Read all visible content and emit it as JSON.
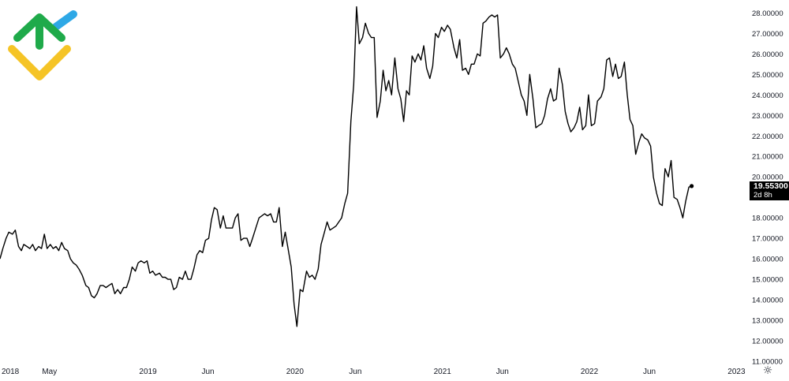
{
  "colors": {
    "line": "#000000",
    "logo_green": "#1faa4a",
    "logo_blue": "#2ea8e6",
    "logo_yellow": "#f5c426",
    "badge_bg": "#000000",
    "badge_text": "#ffffff"
  },
  "icons": {
    "logo": "brand-logo-icon",
    "settings": "gear-icon"
  },
  "price_badge": {
    "value": "19.55300",
    "countdown": "2d 8h"
  },
  "chart_data": {
    "type": "line",
    "title": "",
    "xlabel": "",
    "ylabel": "",
    "ylim": [
      11,
      28.4
    ],
    "xlim": [
      "2018-01-01",
      "2023-01-20"
    ],
    "y_ticks": [
      "11.00000",
      "12.00000",
      "13.00000",
      "14.00000",
      "15.00000",
      "16.00000",
      "17.00000",
      "18.00000",
      "19.00000",
      "20.00000",
      "21.00000",
      "22.00000",
      "23.00000",
      "24.00000",
      "25.00000",
      "26.00000",
      "27.00000",
      "28.00000"
    ],
    "x_ticks": [
      {
        "label": "2018",
        "date": "2018-01-01"
      },
      {
        "label": "May",
        "date": "2018-05-01"
      },
      {
        "label": "2019",
        "date": "2019-01-01"
      },
      {
        "label": "Jun",
        "date": "2019-06-01"
      },
      {
        "label": "2020",
        "date": "2020-01-01"
      },
      {
        "label": "Jun",
        "date": "2020-06-01"
      },
      {
        "label": "2021",
        "date": "2021-01-01"
      },
      {
        "label": "Jun",
        "date": "2021-06-01"
      },
      {
        "label": "2022",
        "date": "2022-01-01"
      },
      {
        "label": "Jun",
        "date": "2022-06-01"
      },
      {
        "label": "2023",
        "date": "2023-01-01"
      }
    ],
    "grid": false,
    "series": [
      {
        "points": [
          [
            "2018-01-01",
            16.0
          ],
          [
            "2018-01-08",
            16.5
          ],
          [
            "2018-01-16",
            17.0
          ],
          [
            "2018-01-23",
            17.3
          ],
          [
            "2018-02-01",
            17.2
          ],
          [
            "2018-02-08",
            17.4
          ],
          [
            "2018-02-16",
            16.6
          ],
          [
            "2018-02-23",
            16.4
          ],
          [
            "2018-03-01",
            16.7
          ],
          [
            "2018-03-09",
            16.6
          ],
          [
            "2018-03-16",
            16.5
          ],
          [
            "2018-03-23",
            16.7
          ],
          [
            "2018-03-30",
            16.4
          ],
          [
            "2018-04-07",
            16.6
          ],
          [
            "2018-04-14",
            16.5
          ],
          [
            "2018-04-21",
            17.2
          ],
          [
            "2018-04-28",
            16.5
          ],
          [
            "2018-05-06",
            16.7
          ],
          [
            "2018-05-13",
            16.5
          ],
          [
            "2018-05-20",
            16.6
          ],
          [
            "2018-05-27",
            16.4
          ],
          [
            "2018-06-03",
            16.8
          ],
          [
            "2018-06-10",
            16.5
          ],
          [
            "2018-06-18",
            16.4
          ],
          [
            "2018-06-25",
            16.0
          ],
          [
            "2018-07-02",
            15.8
          ],
          [
            "2018-07-09",
            15.7
          ],
          [
            "2018-07-16",
            15.5
          ],
          [
            "2018-07-24",
            15.2
          ],
          [
            "2018-08-02",
            14.7
          ],
          [
            "2018-08-09",
            14.6
          ],
          [
            "2018-08-16",
            14.2
          ],
          [
            "2018-08-23",
            14.1
          ],
          [
            "2018-08-30",
            14.3
          ],
          [
            "2018-09-07",
            14.7
          ],
          [
            "2018-09-14",
            14.7
          ],
          [
            "2018-09-21",
            14.6
          ],
          [
            "2018-09-28",
            14.7
          ],
          [
            "2018-10-06",
            14.8
          ],
          [
            "2018-10-13",
            14.3
          ],
          [
            "2018-10-20",
            14.5
          ],
          [
            "2018-10-27",
            14.3
          ],
          [
            "2018-11-04",
            14.6
          ],
          [
            "2018-11-11",
            14.6
          ],
          [
            "2018-11-18",
            15.0
          ],
          [
            "2018-11-25",
            15.6
          ],
          [
            "2018-12-03",
            15.4
          ],
          [
            "2018-12-10",
            15.8
          ],
          [
            "2018-12-17",
            15.9
          ],
          [
            "2018-12-25",
            15.8
          ],
          [
            "2019-01-01",
            15.9
          ],
          [
            "2019-01-08",
            15.3
          ],
          [
            "2019-01-15",
            15.4
          ],
          [
            "2019-01-22",
            15.2
          ],
          [
            "2019-02-01",
            15.3
          ],
          [
            "2019-02-08",
            15.1
          ],
          [
            "2019-02-15",
            15.1
          ],
          [
            "2019-02-22",
            15.0
          ],
          [
            "2019-03-01",
            15.0
          ],
          [
            "2019-03-08",
            14.5
          ],
          [
            "2019-03-15",
            14.6
          ],
          [
            "2019-03-22",
            15.1
          ],
          [
            "2019-03-30",
            15.0
          ],
          [
            "2019-04-06",
            15.4
          ],
          [
            "2019-04-13",
            15.0
          ],
          [
            "2019-04-20",
            15.0
          ],
          [
            "2019-04-27",
            15.5
          ],
          [
            "2019-05-05",
            16.2
          ],
          [
            "2019-05-12",
            16.4
          ],
          [
            "2019-05-19",
            16.3
          ],
          [
            "2019-05-26",
            16.9
          ],
          [
            "2019-06-03",
            17.0
          ],
          [
            "2019-06-10",
            17.9
          ],
          [
            "2019-06-17",
            18.5
          ],
          [
            "2019-06-24",
            18.4
          ],
          [
            "2019-07-02",
            17.5
          ],
          [
            "2019-07-09",
            18.1
          ],
          [
            "2019-07-16",
            17.5
          ],
          [
            "2019-07-24",
            17.5
          ],
          [
            "2019-08-01",
            17.5
          ],
          [
            "2019-08-08",
            18.0
          ],
          [
            "2019-08-15",
            18.2
          ],
          [
            "2019-08-22",
            16.9
          ],
          [
            "2019-08-29",
            17.0
          ],
          [
            "2019-09-06",
            17.0
          ],
          [
            "2019-09-13",
            16.6
          ],
          [
            "2019-09-20",
            17.0
          ],
          [
            "2019-09-28",
            17.5
          ],
          [
            "2019-10-06",
            18.0
          ],
          [
            "2019-10-13",
            18.1
          ],
          [
            "2019-10-20",
            18.2
          ],
          [
            "2019-10-27",
            18.1
          ],
          [
            "2019-11-04",
            18.2
          ],
          [
            "2019-11-11",
            17.8
          ],
          [
            "2019-11-18",
            17.8
          ],
          [
            "2019-11-25",
            18.5
          ],
          [
            "2019-12-03",
            16.6
          ],
          [
            "2019-12-10",
            17.3
          ],
          [
            "2019-12-17",
            16.5
          ],
          [
            "2019-12-25",
            15.6
          ],
          [
            "2020-01-01",
            13.8
          ],
          [
            "2020-01-08",
            12.7
          ],
          [
            "2020-01-16",
            14.5
          ],
          [
            "2020-01-23",
            14.4
          ],
          [
            "2020-02-01",
            15.4
          ],
          [
            "2020-02-08",
            15.1
          ],
          [
            "2020-02-15",
            15.2
          ],
          [
            "2020-02-22",
            15.0
          ],
          [
            "2020-03-01",
            15.5
          ],
          [
            "2020-03-08",
            16.7
          ],
          [
            "2020-03-15",
            17.2
          ],
          [
            "2020-03-23",
            17.8
          ],
          [
            "2020-03-30",
            17.4
          ],
          [
            "2020-04-07",
            17.5
          ],
          [
            "2020-04-14",
            17.6
          ],
          [
            "2020-04-21",
            17.8
          ],
          [
            "2020-04-28",
            18.0
          ],
          [
            "2020-05-06",
            18.7
          ],
          [
            "2020-05-13",
            19.2
          ],
          [
            "2020-05-21",
            22.7
          ],
          [
            "2020-05-28",
            24.5
          ],
          [
            "2020-06-04",
            28.3
          ],
          [
            "2020-06-11",
            26.5
          ],
          [
            "2020-06-19",
            26.8
          ],
          [
            "2020-06-26",
            27.5
          ],
          [
            "2020-07-04",
            27.0
          ],
          [
            "2020-07-11",
            26.8
          ],
          [
            "2020-07-18",
            26.8
          ],
          [
            "2020-07-25",
            22.9
          ],
          [
            "2020-08-02",
            23.7
          ],
          [
            "2020-08-09",
            25.2
          ],
          [
            "2020-08-16",
            24.2
          ],
          [
            "2020-08-23",
            24.7
          ],
          [
            "2020-08-30",
            24.0
          ],
          [
            "2020-09-07",
            25.8
          ],
          [
            "2020-09-15",
            24.3
          ],
          [
            "2020-09-22",
            23.8
          ],
          [
            "2020-09-29",
            22.7
          ],
          [
            "2020-10-06",
            24.2
          ],
          [
            "2020-10-13",
            24.0
          ],
          [
            "2020-10-20",
            25.9
          ],
          [
            "2020-10-27",
            25.6
          ],
          [
            "2020-11-04",
            26.0
          ],
          [
            "2020-11-11",
            25.7
          ],
          [
            "2020-11-18",
            26.4
          ],
          [
            "2020-11-25",
            25.3
          ],
          [
            "2020-12-03",
            24.8
          ],
          [
            "2020-12-10",
            25.4
          ],
          [
            "2020-12-17",
            27.0
          ],
          [
            "2020-12-24",
            26.8
          ],
          [
            "2021-01-01",
            27.3
          ],
          [
            "2021-01-08",
            27.1
          ],
          [
            "2021-01-16",
            27.4
          ],
          [
            "2021-01-23",
            27.2
          ],
          [
            "2021-02-01",
            26.3
          ],
          [
            "2021-02-08",
            25.8
          ],
          [
            "2021-02-15",
            26.7
          ],
          [
            "2021-02-22",
            25.2
          ],
          [
            "2021-03-02",
            25.3
          ],
          [
            "2021-03-09",
            25.0
          ],
          [
            "2021-03-16",
            25.5
          ],
          [
            "2021-03-23",
            25.5
          ],
          [
            "2021-03-31",
            26.0
          ],
          [
            "2021-04-07",
            25.9
          ],
          [
            "2021-04-14",
            27.5
          ],
          [
            "2021-04-21",
            27.6
          ],
          [
            "2021-04-29",
            27.8
          ],
          [
            "2021-05-06",
            27.9
          ],
          [
            "2021-05-13",
            27.8
          ],
          [
            "2021-05-20",
            27.9
          ],
          [
            "2021-05-27",
            25.8
          ],
          [
            "2021-06-04",
            26.0
          ],
          [
            "2021-06-11",
            26.3
          ],
          [
            "2021-06-18",
            26.0
          ],
          [
            "2021-06-26",
            25.5
          ],
          [
            "2021-07-03",
            25.3
          ],
          [
            "2021-07-10",
            24.7
          ],
          [
            "2021-07-18",
            24.0
          ],
          [
            "2021-07-25",
            23.7
          ],
          [
            "2021-08-01",
            23.0
          ],
          [
            "2021-08-08",
            25.0
          ],
          [
            "2021-08-16",
            23.8
          ],
          [
            "2021-08-23",
            22.4
          ],
          [
            "2021-08-30",
            22.5
          ],
          [
            "2021-09-07",
            22.6
          ],
          [
            "2021-09-14",
            23.0
          ],
          [
            "2021-09-21",
            23.8
          ],
          [
            "2021-09-29",
            24.3
          ],
          [
            "2021-10-06",
            23.7
          ],
          [
            "2021-10-13",
            23.8
          ],
          [
            "2021-10-20",
            25.3
          ],
          [
            "2021-10-28",
            24.5
          ],
          [
            "2021-11-04",
            23.2
          ],
          [
            "2021-11-11",
            22.6
          ],
          [
            "2021-11-18",
            22.2
          ],
          [
            "2021-11-26",
            22.4
          ],
          [
            "2021-12-03",
            22.7
          ],
          [
            "2021-12-10",
            23.4
          ],
          [
            "2021-12-17",
            22.3
          ],
          [
            "2021-12-25",
            22.5
          ],
          [
            "2022-01-01",
            24.0
          ],
          [
            "2022-01-08",
            22.5
          ],
          [
            "2022-01-16",
            22.6
          ],
          [
            "2022-01-23",
            23.7
          ],
          [
            "2022-02-01",
            23.9
          ],
          [
            "2022-02-08",
            24.3
          ],
          [
            "2022-02-15",
            25.7
          ],
          [
            "2022-02-22",
            25.8
          ],
          [
            "2022-03-02",
            24.9
          ],
          [
            "2022-03-09",
            25.5
          ],
          [
            "2022-03-16",
            24.8
          ],
          [
            "2022-03-23",
            24.9
          ],
          [
            "2022-03-31",
            25.6
          ],
          [
            "2022-04-07",
            24.0
          ],
          [
            "2022-04-14",
            22.8
          ],
          [
            "2022-04-21",
            22.5
          ],
          [
            "2022-04-28",
            21.1
          ],
          [
            "2022-05-06",
            21.7
          ],
          [
            "2022-05-13",
            22.1
          ],
          [
            "2022-05-20",
            21.9
          ],
          [
            "2022-05-28",
            21.8
          ],
          [
            "2022-06-04",
            21.5
          ],
          [
            "2022-06-11",
            20.0
          ],
          [
            "2022-06-19",
            19.2
          ],
          [
            "2022-06-26",
            18.7
          ],
          [
            "2022-07-03",
            18.6
          ],
          [
            "2022-07-10",
            20.4
          ],
          [
            "2022-07-18",
            20.0
          ],
          [
            "2022-07-25",
            20.8
          ],
          [
            "2022-08-01",
            19.0
          ],
          [
            "2022-08-09",
            18.9
          ],
          [
            "2022-08-16",
            18.5
          ],
          [
            "2022-08-23",
            18.0
          ],
          [
            "2022-08-30",
            18.8
          ],
          [
            "2022-09-07",
            19.5
          ],
          [
            "2022-09-14",
            19.55
          ]
        ]
      }
    ]
  }
}
